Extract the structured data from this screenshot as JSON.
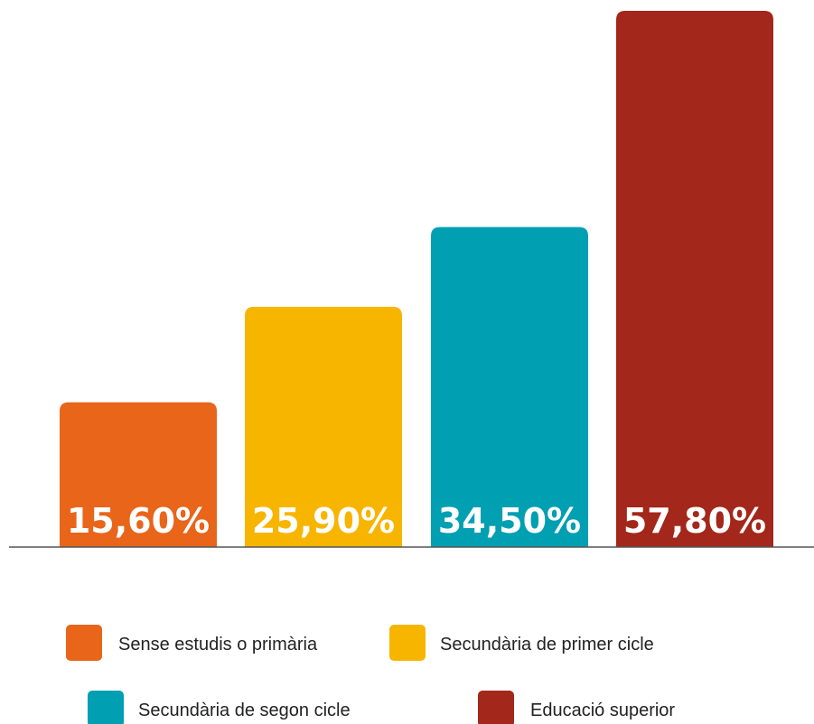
{
  "chart_data": {
    "type": "bar",
    "categories": [
      "Sense estudis o primària",
      "Secundària de primer cicle",
      "Secundària de segon cicle",
      "Educació superior"
    ],
    "values": [
      15.6,
      25.9,
      34.5,
      57.8
    ],
    "value_labels": [
      "15,60%",
      "25,90%",
      "34,50%",
      "57,80%"
    ],
    "colors": [
      "#e8651a",
      "#f7b500",
      "#009fb2",
      "#a3271a"
    ],
    "ylim": [
      0,
      57.8
    ],
    "grid": false,
    "legend_placement": "bottom"
  }
}
